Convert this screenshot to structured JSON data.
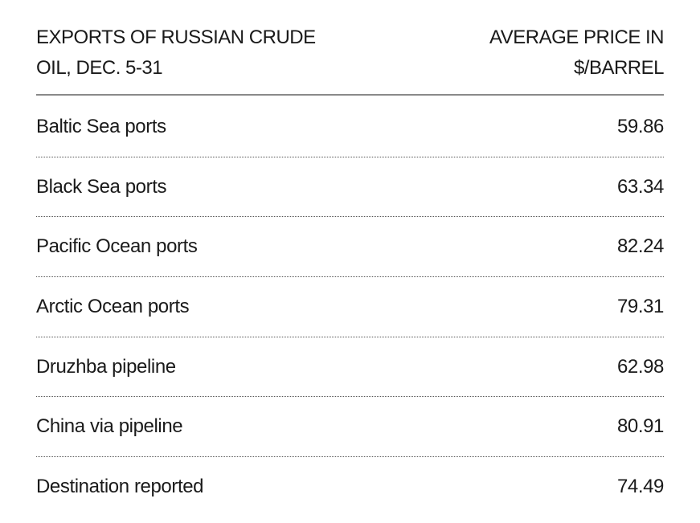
{
  "header": {
    "left_line1": "EXPORTS OF RUSSIAN CRUDE",
    "left_line2": "OIL, DEC. 5-31",
    "right_line1": "AVERAGE PRICE IN",
    "right_line2": "$/BARREL"
  },
  "rows": [
    {
      "label": "Baltic Sea ports",
      "value": "59.86"
    },
    {
      "label": "Black Sea ports",
      "value": "63.34"
    },
    {
      "label": "Pacific Ocean ports",
      "value": "82.24"
    },
    {
      "label": "Arctic Ocean ports",
      "value": "79.31"
    },
    {
      "label": "Druzhba pipeline",
      "value": "62.98"
    },
    {
      "label": "China via pipeline",
      "value": "80.91"
    },
    {
      "label": "Destination reported",
      "value": "74.49"
    }
  ],
  "chart_data": {
    "type": "table",
    "title": "Exports of Russian crude oil, Dec. 5-31",
    "columns": [
      "EXPORTS OF RUSSIAN CRUDE OIL, DEC. 5-31",
      "AVERAGE PRICE IN $/BARREL"
    ],
    "categories": [
      "Baltic Sea ports",
      "Black Sea ports",
      "Pacific Ocean ports",
      "Arctic Ocean ports",
      "Druzhba pipeline",
      "China via pipeline",
      "Destination reported"
    ],
    "values": [
      59.86,
      63.34,
      82.24,
      79.31,
      62.98,
      80.91,
      74.49
    ],
    "unit": "$/barrel"
  }
}
